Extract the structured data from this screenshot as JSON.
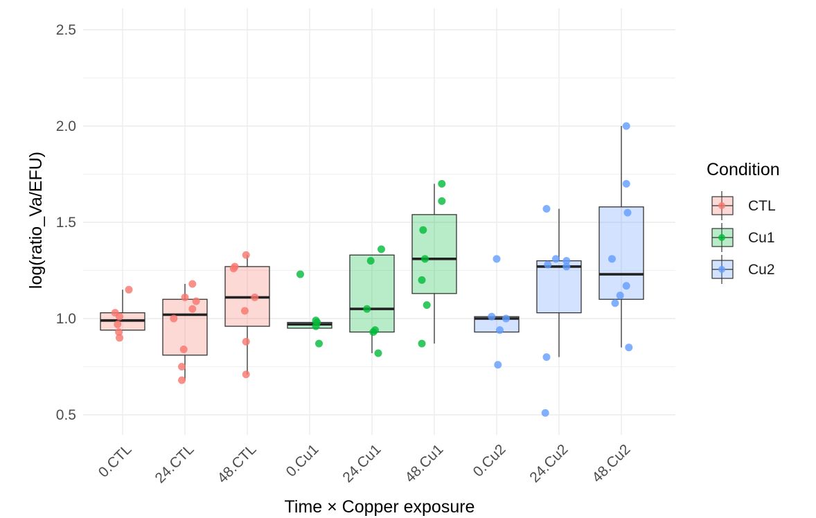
{
  "chart_data": {
    "type": "boxplot",
    "xlabel": "Time × Copper exposure",
    "ylabel": "log(ratio_Va/EFU)",
    "ylim": [
      0.42,
      2.6
    ],
    "yticks": [
      "0.5",
      "1.0",
      "1.5",
      "2.0",
      "2.5"
    ],
    "grid": true,
    "legend": {
      "title": "Condition",
      "position": "right",
      "entries": [
        {
          "label": "CTL",
          "color": "#f8766d"
        },
        {
          "label": "Cu1",
          "color": "#00ba38"
        },
        {
          "label": "Cu2",
          "color": "#619cff"
        }
      ]
    },
    "categories": [
      "0.CTL",
      "24.CTL",
      "48.CTL",
      "0.Cu1",
      "24.Cu1",
      "48.Cu1",
      "0.Cu2",
      "24.Cu2",
      "48.Cu2"
    ],
    "groups": [
      {
        "category": "0.CTL",
        "condition": "CTL",
        "box": {
          "min": 0.94,
          "q1": 0.94,
          "median": 0.99,
          "q3": 1.03,
          "max": 1.15
        },
        "points": [
          {
            "x": 0.1,
            "y": 1.15
          },
          {
            "x": -0.12,
            "y": 1.03
          },
          {
            "x": -0.05,
            "y": 1.01
          },
          {
            "x": -0.08,
            "y": 0.97
          },
          {
            "x": -0.06,
            "y": 0.93
          },
          {
            "x": -0.05,
            "y": 0.9
          }
        ]
      },
      {
        "category": "24.CTL",
        "condition": "CTL",
        "box": {
          "min": 0.68,
          "q1": 0.81,
          "median": 1.02,
          "q3": 1.1,
          "max": 1.18
        },
        "points": [
          {
            "x": 0.12,
            "y": 1.18
          },
          {
            "x": 0.0,
            "y": 1.11
          },
          {
            "x": 0.18,
            "y": 1.09
          },
          {
            "x": 0.12,
            "y": 1.05
          },
          {
            "x": -0.18,
            "y": 1.0
          },
          {
            "x": -0.02,
            "y": 0.84
          },
          {
            "x": -0.05,
            "y": 0.75
          },
          {
            "x": -0.05,
            "y": 0.68
          }
        ]
      },
      {
        "category": "48.CTL",
        "condition": "CTL",
        "box": {
          "min": 0.71,
          "q1": 0.96,
          "median": 1.11,
          "q3": 1.27,
          "max": 1.33
        },
        "points": [
          {
            "x": -0.02,
            "y": 1.33
          },
          {
            "x": -0.2,
            "y": 1.27
          },
          {
            "x": -0.22,
            "y": 1.26
          },
          {
            "x": 0.12,
            "y": 1.11
          },
          {
            "x": -0.04,
            "y": 1.04
          },
          {
            "x": -0.02,
            "y": 0.88
          },
          {
            "x": -0.02,
            "y": 0.71
          }
        ]
      },
      {
        "category": "0.Cu1",
        "condition": "Cu1",
        "box": {
          "min": 0.95,
          "q1": 0.95,
          "median": 0.97,
          "q3": 0.98,
          "max": 0.98
        },
        "points": [
          {
            "x": -0.15,
            "y": 1.23
          },
          {
            "x": 0.1,
            "y": 0.99
          },
          {
            "x": 0.12,
            "y": 0.98
          },
          {
            "x": 0.1,
            "y": 0.96
          },
          {
            "x": 0.15,
            "y": 0.87
          }
        ]
      },
      {
        "category": "24.Cu1",
        "condition": "Cu1",
        "box": {
          "min": 0.82,
          "q1": 0.93,
          "median": 1.05,
          "q3": 1.33,
          "max": 1.33
        },
        "points": [
          {
            "x": 0.15,
            "y": 1.36
          },
          {
            "x": -0.02,
            "y": 1.3
          },
          {
            "x": -0.08,
            "y": 1.05
          },
          {
            "x": 0.05,
            "y": 0.94
          },
          {
            "x": 0.02,
            "y": 0.93
          },
          {
            "x": 0.1,
            "y": 0.82
          }
        ]
      },
      {
        "category": "48.Cu1",
        "condition": "Cu1",
        "box": {
          "min": 0.87,
          "q1": 1.13,
          "median": 1.31,
          "q3": 1.54,
          "max": 1.7
        },
        "points": [
          {
            "x": 0.12,
            "y": 1.7
          },
          {
            "x": 0.12,
            "y": 1.61
          },
          {
            "x": -0.18,
            "y": 1.46
          },
          {
            "x": -0.15,
            "y": 1.31
          },
          {
            "x": -0.2,
            "y": 1.2
          },
          {
            "x": -0.12,
            "y": 1.07
          },
          {
            "x": -0.2,
            "y": 0.87
          }
        ]
      },
      {
        "category": "0.Cu2",
        "condition": "Cu2",
        "box": {
          "min": 0.93,
          "q1": 0.93,
          "median": 1.0,
          "q3": 1.01,
          "max": 1.01
        },
        "points": [
          {
            "x": 0.0,
            "y": 1.31
          },
          {
            "x": -0.08,
            "y": 1.01
          },
          {
            "x": 0.15,
            "y": 1.0
          },
          {
            "x": 0.05,
            "y": 0.94
          },
          {
            "x": 0.02,
            "y": 0.76
          }
        ]
      },
      {
        "category": "24.Cu2",
        "condition": "Cu2",
        "box": {
          "min": 0.8,
          "q1": 1.03,
          "median": 1.27,
          "q3": 1.3,
          "max": 1.57
        },
        "points": [
          {
            "x": -0.2,
            "y": 1.57
          },
          {
            "x": -0.05,
            "y": 1.31
          },
          {
            "x": 0.12,
            "y": 1.3
          },
          {
            "x": -0.18,
            "y": 1.28
          },
          {
            "x": 0.12,
            "y": 1.27
          },
          {
            "x": -0.2,
            "y": 0.8
          },
          {
            "x": -0.22,
            "y": 0.51
          }
        ]
      },
      {
        "category": "48.Cu2",
        "condition": "Cu2",
        "box": {
          "min": 0.85,
          "q1": 1.1,
          "median": 1.23,
          "q3": 1.58,
          "max": 2.0
        },
        "points": [
          {
            "x": 0.08,
            "y": 2.0
          },
          {
            "x": 0.08,
            "y": 1.7
          },
          {
            "x": 0.1,
            "y": 1.55
          },
          {
            "x": -0.15,
            "y": 1.31
          },
          {
            "x": 0.08,
            "y": 1.17
          },
          {
            "x": -0.02,
            "y": 1.12
          },
          {
            "x": -0.1,
            "y": 1.08
          },
          {
            "x": 0.12,
            "y": 0.85
          }
        ]
      }
    ]
  }
}
